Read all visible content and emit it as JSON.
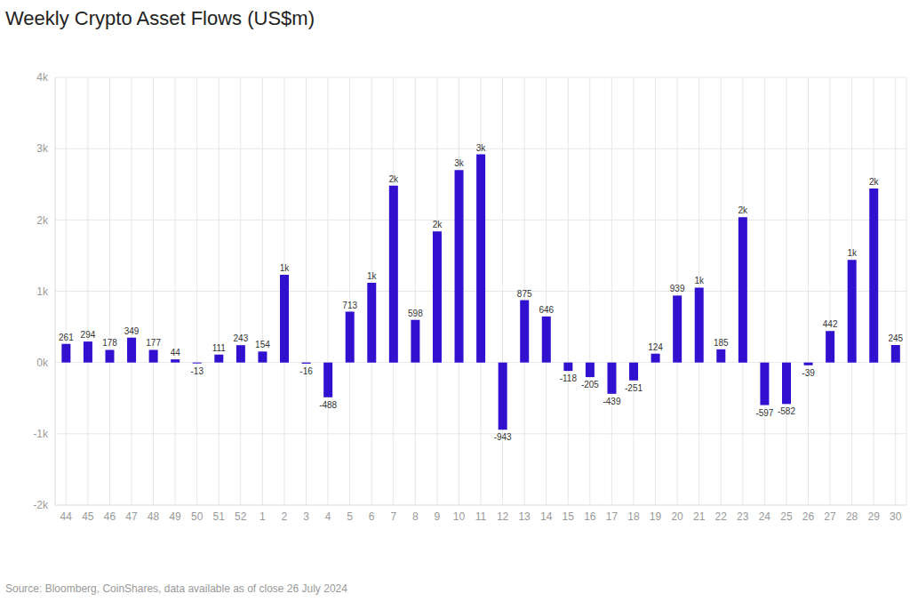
{
  "chart_data": {
    "type": "bar",
    "title": "Weekly Crypto Asset Flows (US$m)",
    "source": "Source: Bloomberg, CoinShares, data available as of close 26 July 2024",
    "categories": [
      "44",
      "45",
      "46",
      "47",
      "48",
      "49",
      "50",
      "51",
      "52",
      "1",
      "2",
      "3",
      "4",
      "5",
      "6",
      "7",
      "8",
      "9",
      "10",
      "11",
      "12",
      "13",
      "14",
      "15",
      "16",
      "17",
      "18",
      "19",
      "20",
      "21",
      "22",
      "23",
      "24",
      "25",
      "26",
      "27",
      "28",
      "29",
      "30"
    ],
    "values": [
      261,
      294,
      178,
      349,
      177,
      44,
      -13,
      111,
      243,
      154,
      1230,
      -16,
      -488,
      713,
      1120,
      2480,
      598,
      1840,
      2700,
      2920,
      -943,
      875,
      646,
      -118,
      -205,
      -439,
      -251,
      124,
      939,
      1050,
      185,
      2040,
      -597,
      -582,
      -39,
      442,
      1440,
      2440,
      245
    ],
    "value_labels": [
      "261",
      "294",
      "178",
      "349",
      "177",
      "44",
      "-13",
      "111",
      "243",
      "154",
      "1k",
      "-16",
      "-488",
      "713",
      "1k",
      "2k",
      "598",
      "2k",
      "3k",
      "3k",
      "-943",
      "875",
      "646",
      "-118",
      "-205",
      "-439",
      "-251",
      "124",
      "939",
      "1k",
      "185",
      "2k",
      "-597",
      "-582",
      "-39",
      "442",
      "1k",
      "2k",
      "245"
    ],
    "color": "#3210d0",
    "ylim": [
      -2000,
      4000
    ],
    "yticks": [
      {
        "value": -2000,
        "label": "-2k"
      },
      {
        "value": -1000,
        "label": "-1k"
      },
      {
        "value": 0,
        "label": "0k"
      },
      {
        "value": 1000,
        "label": "1k"
      },
      {
        "value": 2000,
        "label": "2k"
      },
      {
        "value": 3000,
        "label": "3k"
      },
      {
        "value": 4000,
        "label": "4k"
      }
    ],
    "grid": true,
    "data_labels": true
  }
}
